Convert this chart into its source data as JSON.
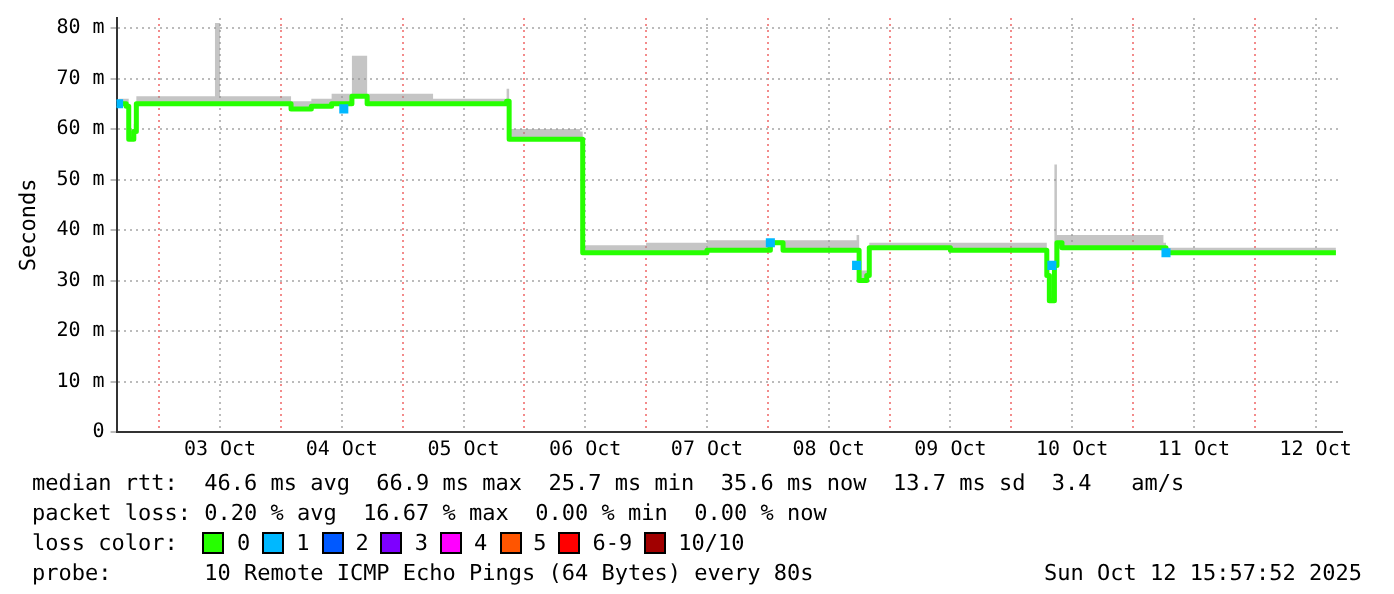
{
  "chart_data": {
    "type": "line",
    "ylabel": "Seconds",
    "legend_title": "loss color:",
    "legend": "bottom",
    "grid": true,
    "marker": "none",
    "line_style": "solid",
    "xlim": [
      "2025-10-02T15:36",
      "2025-10-12T17:12"
    ],
    "xticks": [
      {
        "value": "2025-10-03T00:00",
        "label": null
      },
      {
        "value": "2025-10-03T12:00",
        "label": "03 Oct"
      },
      {
        "value": "2025-10-04T00:00",
        "label": null
      },
      {
        "value": "2025-10-04T12:00",
        "label": "04 Oct"
      },
      {
        "value": "2025-10-05T00:00",
        "label": null
      },
      {
        "value": "2025-10-05T12:00",
        "label": "05 Oct"
      },
      {
        "value": "2025-10-06T00:00",
        "label": null
      },
      {
        "value": "2025-10-06T12:00",
        "label": "06 Oct"
      },
      {
        "value": "2025-10-07T00:00",
        "label": null
      },
      {
        "value": "2025-10-07T12:00",
        "label": "07 Oct"
      },
      {
        "value": "2025-10-08T00:00",
        "label": null
      },
      {
        "value": "2025-10-08T12:00",
        "label": "08 Oct"
      },
      {
        "value": "2025-10-09T00:00",
        "label": null
      },
      {
        "value": "2025-10-09T12:00",
        "label": "09 Oct"
      },
      {
        "value": "2025-10-10T00:00",
        "label": null
      },
      {
        "value": "2025-10-10T12:00",
        "label": "10 Oct"
      },
      {
        "value": "2025-10-11T00:00",
        "label": null
      },
      {
        "value": "2025-10-11T12:00",
        "label": "11 Oct"
      },
      {
        "value": "2025-10-12T00:00",
        "label": null
      },
      {
        "value": "2025-10-12T12:00",
        "label": "12 Oct"
      }
    ],
    "ylim": [
      0,
      82
    ],
    "yticks": [
      0,
      {
        "value": 10,
        "label": "10 m"
      },
      {
        "value": 20,
        "label": "20 m"
      },
      {
        "value": 30,
        "label": "30 m"
      },
      {
        "value": 40,
        "label": "40 m"
      },
      {
        "value": 50,
        "label": "50 m"
      },
      {
        "value": 60,
        "label": "60 m"
      },
      {
        "value": 70,
        "label": "70 m"
      },
      {
        "value": 80,
        "label": "80 m"
      }
    ],
    "x": [
      "2025-10-02T16:00",
      "2025-10-02T17:30",
      "2025-10-02T18:00",
      "2025-10-02T19:00",
      "2025-10-02T19:30",
      "2025-10-03T11:00",
      "2025-10-03T12:00",
      "2025-10-04T02:00",
      "2025-10-04T06:00",
      "2025-10-04T10:00",
      "2025-10-04T14:00",
      "2025-10-04T17:00",
      "2025-10-05T06:00",
      "2025-10-05T12:00",
      "2025-10-05T20:30",
      "2025-10-05T21:00",
      "2025-10-06T11:00",
      "2025-10-06T11:30",
      "2025-10-07T00:00",
      "2025-10-07T12:00",
      "2025-10-08T00:00",
      "2025-10-08T00:30",
      "2025-10-08T02:30",
      "2025-10-08T03:00",
      "2025-10-08T17:30",
      "2025-10-08T18:00",
      "2025-10-08T19:30",
      "2025-10-08T20:00",
      "2025-10-09T12:00",
      "2025-10-10T06:00",
      "2025-10-10T07:00",
      "2025-10-10T07:30",
      "2025-10-10T08:30",
      "2025-10-10T09:00",
      "2025-10-10T10:00",
      "2025-10-11T06:00",
      "2025-10-11T06:30",
      "2025-10-12T16:00"
    ],
    "series": [
      {
        "name": "0",
        "color": "#26ff00",
        "values": [
          65,
          64.5,
          58,
          59.5,
          65,
          65,
          65,
          64,
          64.5,
          65,
          66.5,
          65,
          65,
          65,
          65.5,
          58,
          58,
          35.5,
          35.5,
          36,
          36,
          37.5,
          37.5,
          36,
          36,
          30,
          31,
          36.5,
          36,
          36,
          31,
          26,
          33,
          37.5,
          36.5,
          36.5,
          35.5,
          35.5
        ],
        "lower": [
          65,
          64.5,
          58,
          59.5,
          65,
          65,
          65,
          64,
          64.5,
          65,
          66.5,
          65,
          65,
          65,
          65.5,
          58,
          58,
          35.5,
          35.5,
          36,
          36,
          37.5,
          37.5,
          36,
          36,
          30,
          31,
          36.5,
          36,
          36,
          31,
          26,
          33,
          37.5,
          36.5,
          36.5,
          35.5,
          35.5
        ],
        "upper": [
          66,
          66,
          60,
          61,
          66.5,
          81,
          66.5,
          65.5,
          66,
          67,
          74.5,
          67,
          66,
          66,
          68,
          60,
          59.5,
          37,
          37.5,
          38,
          37,
          38,
          38,
          38,
          39,
          32,
          32,
          37.5,
          37.5,
          37.5,
          33,
          28,
          53,
          39,
          39,
          37.5,
          36.5,
          36.5
        ]
      },
      {
        "name": "1",
        "color": "#00b8ff",
        "type": "scatter",
        "marker": "square",
        "x": [
          "2025-10-02T16:00",
          "2025-10-04T12:24",
          "2025-10-08T00:30",
          "2025-10-08T17:30",
          "2025-10-10T08:00",
          "2025-10-11T06:30"
        ],
        "values": [
          65,
          64,
          37.5,
          33,
          33,
          35.5
        ]
      },
      {
        "name": "2",
        "color": "#0059ff",
        "values": [
          null,
          null,
          null,
          null,
          null,
          null,
          null,
          null,
          null,
          null,
          null,
          null,
          null,
          null,
          null,
          null,
          null,
          null,
          null,
          null,
          null,
          null,
          null,
          null,
          null,
          null,
          null,
          null,
          null,
          null,
          null,
          null,
          null,
          null,
          null,
          null,
          null,
          null
        ]
      },
      {
        "name": "3",
        "color": "#7e00ff",
        "values": [
          null,
          null,
          null,
          null,
          null,
          null,
          null,
          null,
          null,
          null,
          null,
          null,
          null,
          null,
          null,
          null,
          null,
          null,
          null,
          null,
          null,
          null,
          null,
          null,
          null,
          null,
          null,
          null,
          null,
          null,
          null,
          null,
          null,
          null,
          null,
          null,
          null,
          null
        ]
      },
      {
        "name": "4",
        "color": "#ff00ff",
        "values": [
          null,
          null,
          null,
          null,
          null,
          null,
          null,
          null,
          null,
          null,
          null,
          null,
          null,
          null,
          null,
          null,
          null,
          null,
          null,
          null,
          null,
          null,
          null,
          null,
          null,
          null,
          null,
          null,
          null,
          null,
          null,
          null,
          null,
          null,
          null,
          null,
          null,
          null
        ]
      },
      {
        "name": "5",
        "color": "#ff5500",
        "values": [
          null,
          null,
          null,
          null,
          null,
          null,
          null,
          null,
          null,
          null,
          null,
          null,
          null,
          null,
          null,
          null,
          null,
          null,
          null,
          null,
          null,
          null,
          null,
          null,
          null,
          null,
          null,
          null,
          null,
          null,
          null,
          null,
          null,
          null,
          null,
          null,
          null,
          null
        ]
      },
      {
        "name": "6-9",
        "color": "#ff0000",
        "values": [
          null,
          null,
          null,
          null,
          null,
          null,
          null,
          null,
          null,
          null,
          null,
          null,
          null,
          null,
          null,
          null,
          null,
          null,
          null,
          null,
          null,
          null,
          null,
          null,
          null,
          null,
          null,
          null,
          null,
          null,
          null,
          null,
          null,
          null,
          null,
          null,
          null,
          null
        ]
      },
      {
        "name": "10/10",
        "color": "#a10000",
        "values": [
          null,
          null,
          null,
          null,
          null,
          null,
          null,
          null,
          null,
          null,
          null,
          null,
          null,
          null,
          null,
          null,
          null,
          null,
          null,
          null,
          null,
          null,
          null,
          null,
          null,
          null,
          null,
          null,
          null,
          null,
          null,
          null,
          null,
          null,
          null,
          null,
          null,
          null
        ]
      }
    ],
    "annotations": [
      "median rtt:  46.6 ms avg  66.9 ms max  25.7 ms min  35.6 ms now  13.7 ms sd  3.4   am/s",
      "packet loss: 0.20 % avg  16.67 % max  0.00 % min  0.00 % now",
      "probe:       10 Remote ICMP Echo Pings (64 Bytes) every 80s",
      "Sun Oct 12 15:57:52 2025"
    ]
  }
}
